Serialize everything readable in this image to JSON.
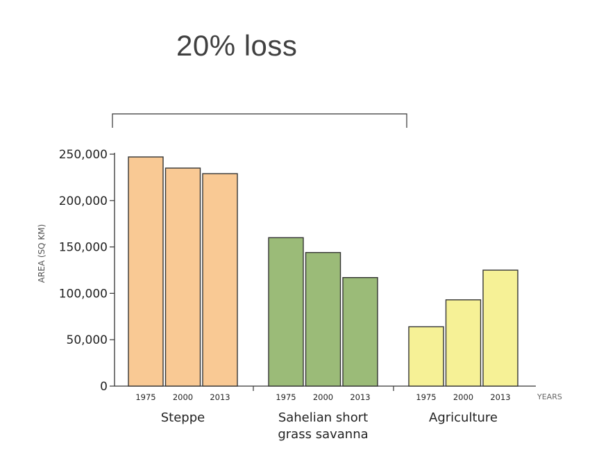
{
  "annotation": {
    "text": "20% loss"
  },
  "chart_data": {
    "type": "bar",
    "title": "",
    "ylabel": "AREA (SQ KM)",
    "xlabel": "YEARS",
    "ylim": [
      0,
      250000
    ],
    "yticks": [
      "0",
      "50,000",
      "100,000",
      "150,000",
      "200,000",
      "250,000"
    ],
    "ytick_values": [
      0,
      50000,
      100000,
      150000,
      200000,
      250000
    ],
    "grid": false,
    "groups": [
      {
        "name": "Steppe",
        "label_lines": [
          "Steppe"
        ],
        "color": "#f9c994",
        "years": [
          "1975",
          "2000",
          "2013"
        ],
        "values": [
          247000,
          235000,
          229000
        ]
      },
      {
        "name": "Sahelian short grass savanna",
        "label_lines": [
          "Sahelian short",
          "grass savanna"
        ],
        "color": "#9bbb78",
        "years": [
          "1975",
          "2000",
          "2013"
        ],
        "values": [
          160000,
          144000,
          117000
        ]
      },
      {
        "name": "Agriculture",
        "label_lines": [
          "Agriculture"
        ],
        "color": "#f6f196",
        "years": [
          "1975",
          "2000",
          "2013"
        ],
        "values": [
          64000,
          93000,
          125000
        ]
      }
    ]
  }
}
